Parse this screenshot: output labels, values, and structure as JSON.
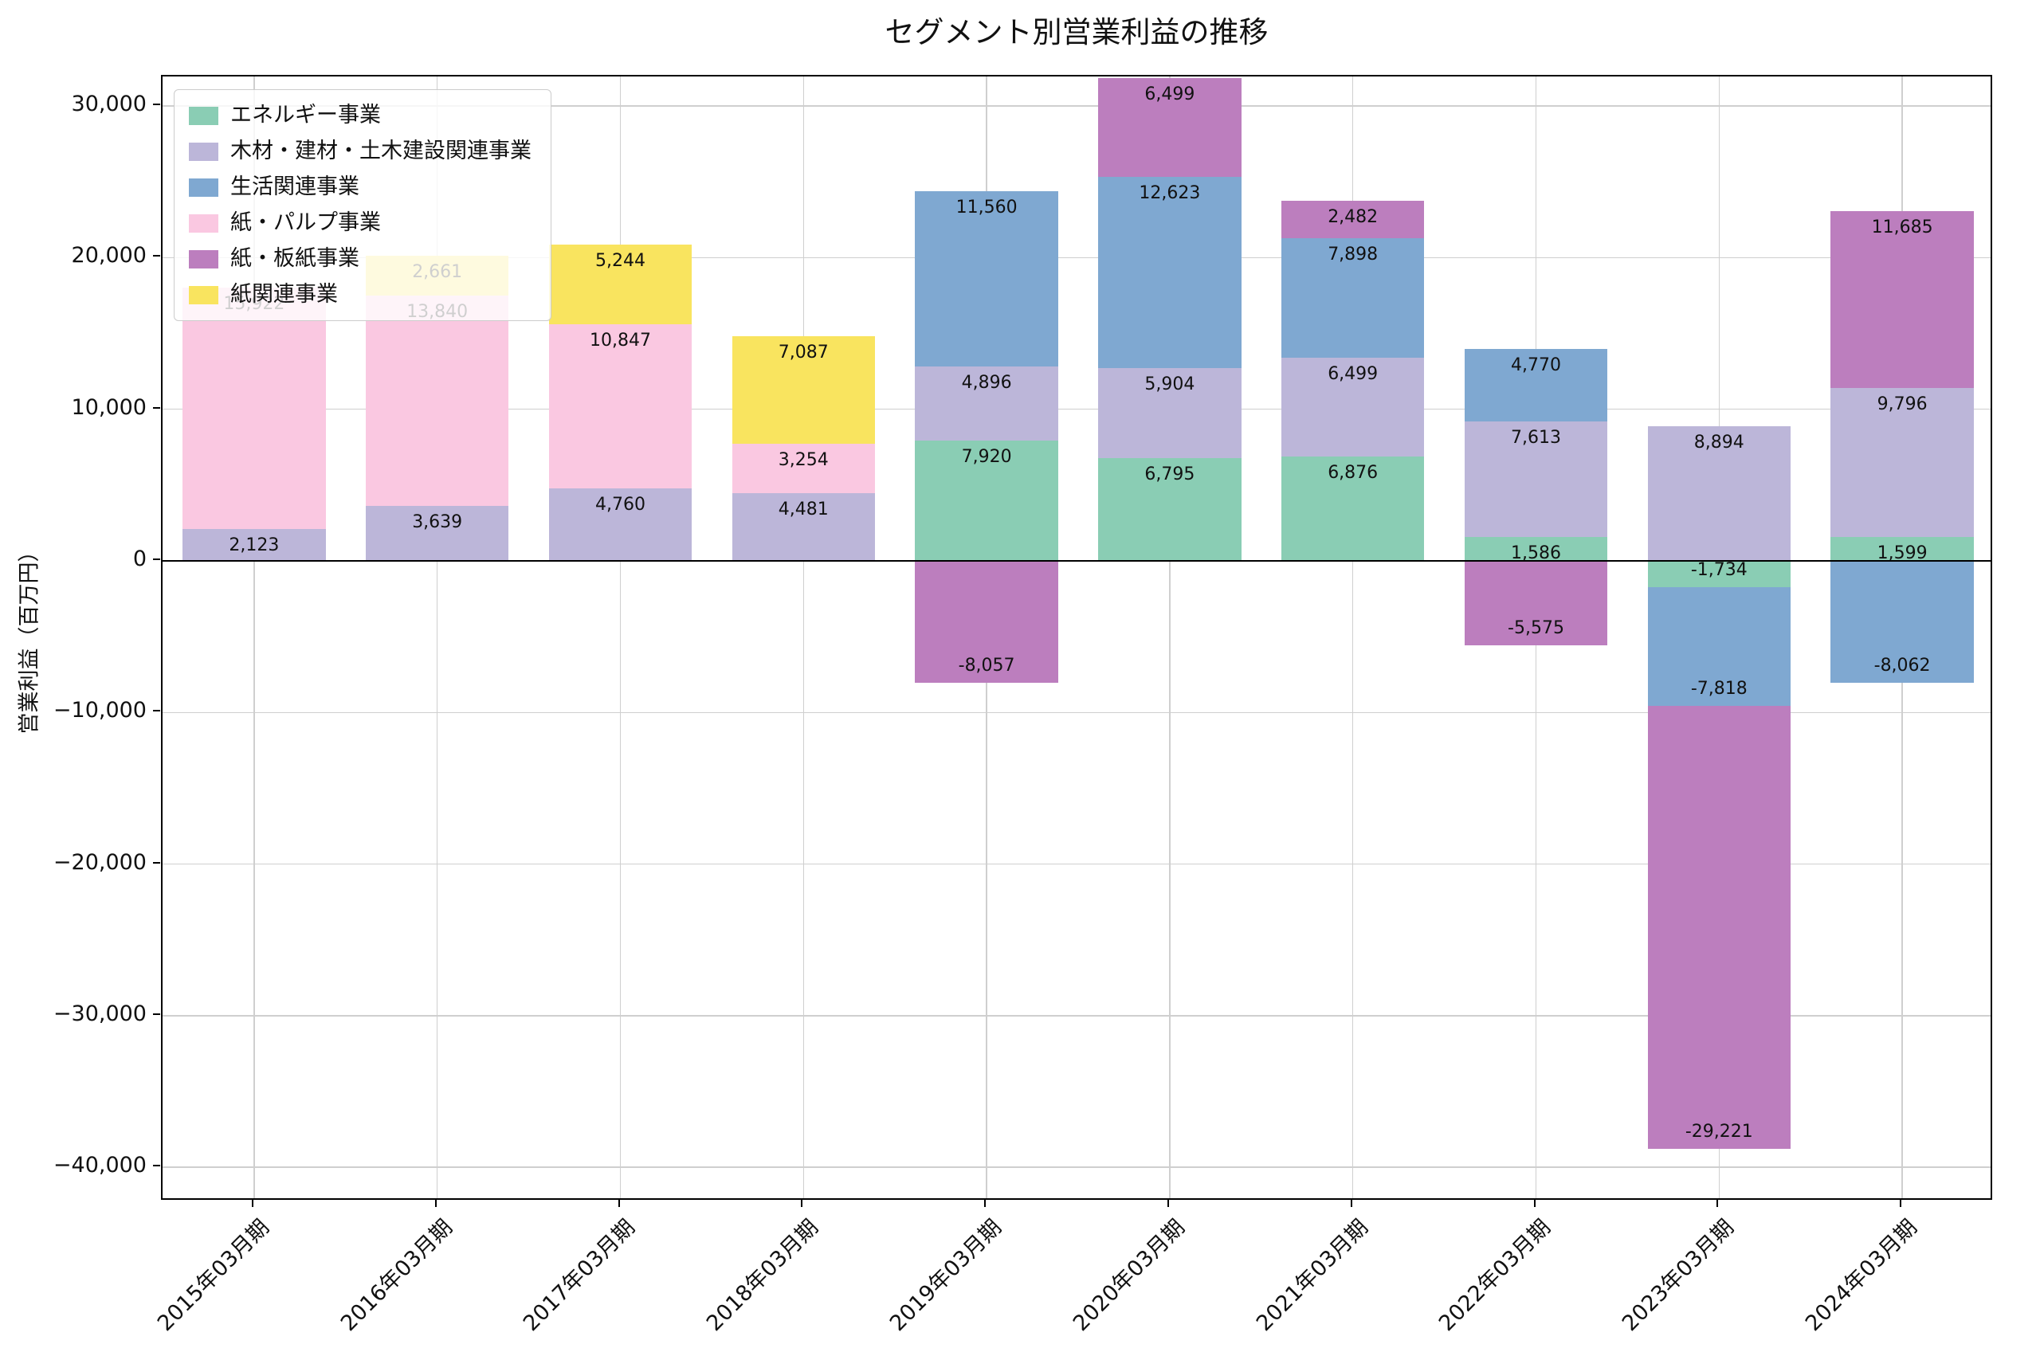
{
  "figure": {
    "background": "#ffffff",
    "grid_color": "#cfcfcf",
    "axis_color": "#000000"
  },
  "chart_data": {
    "type": "bar",
    "stacked": true,
    "title": "セグメント別営業利益の推移",
    "xlabel": "",
    "ylabel": "営業利益（百万円）",
    "legend_position": "upper left",
    "grid": true,
    "ylim": [
      -42250,
      31950
    ],
    "yticks": [
      -40000,
      -30000,
      -20000,
      -10000,
      0,
      10000,
      20000,
      30000
    ],
    "categories": [
      "2015年03月期",
      "2016年03月期",
      "2017年03月期",
      "2018年03月期",
      "2019年03月期",
      "2020年03月期",
      "2021年03月期",
      "2022年03月期",
      "2023年03月期",
      "2024年03月期"
    ],
    "series": [
      {
        "name": "エネルギー事業",
        "color": "#8ACDB4",
        "values": [
          null,
          null,
          null,
          null,
          7920,
          6795,
          6876,
          1586,
          -1734,
          1599
        ]
      },
      {
        "name": "木材・建材・土木建設関連事業",
        "color": "#BCB6D9",
        "values": [
          2123,
          3639,
          4760,
          4481,
          4896,
          5904,
          6499,
          7613,
          8894,
          9796
        ]
      },
      {
        "name": "生活関連事業",
        "color": "#7FA8D1",
        "values": [
          null,
          null,
          null,
          null,
          11560,
          12623,
          7898,
          4770,
          -7818,
          -8062
        ]
      },
      {
        "name": "紙・パルプ事業",
        "color": "#FAC8E1",
        "values": [
          15922,
          13840,
          10847,
          3254,
          null,
          null,
          null,
          null,
          null,
          null
        ]
      },
      {
        "name": "紙・板紙事業",
        "color": "#BC7EBE",
        "values": [
          null,
          null,
          null,
          null,
          -8057,
          6499,
          2482,
          -5575,
          -29221,
          11685
        ]
      },
      {
        "name": "紙関連事業",
        "color": "#F9E45F",
        "values": [
          null,
          2661,
          5244,
          7087,
          null,
          null,
          null,
          null,
          null,
          null
        ]
      }
    ]
  }
}
